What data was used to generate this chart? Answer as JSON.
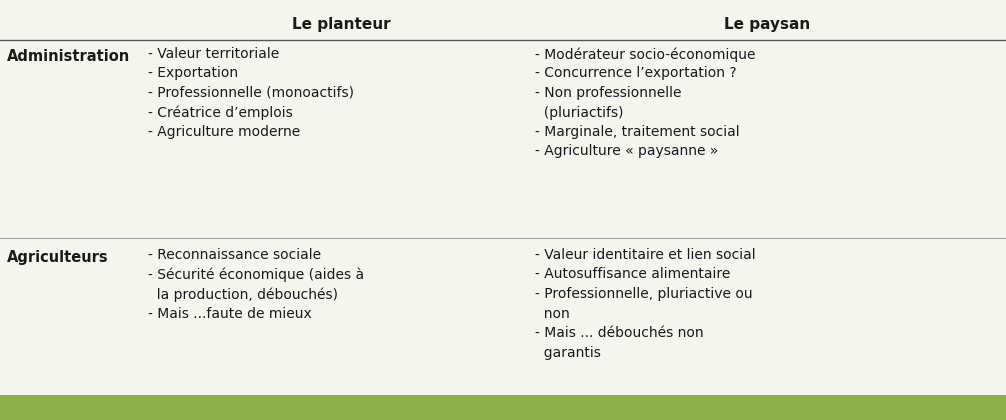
{
  "bg_color": "#f5f5f0",
  "header_col1": "Le planteur",
  "header_col2": "Le paysan",
  "row1_label": "Administration",
  "row2_label": "Agriculteurs",
  "row1_col1_lines": [
    "- Valeur territoriale",
    "- Exportation",
    "- Professionnelle (monoactifs)",
    "- Créatrice d’emplois",
    "- Agriculture moderne"
  ],
  "row1_col2_lines": [
    "- Modérateur socio-économique",
    "- Concurrence l’exportation ?",
    "- Non professionnelle",
    "  (pluriactifs)",
    "- Marginale, traitement social",
    "- Agriculture « paysanne »"
  ],
  "row2_col1_lines": [
    "- Reconnaissance sociale",
    "- Sécurité économique (aides à",
    "  la production, débouchés)",
    "- Mais ...faute de mieux"
  ],
  "row2_col2_lines": [
    "- Valeur identitaire et lien social",
    "- Autosuffisance alimentaire",
    "- Professionnelle, pluriactive ou",
    "  non",
    "- Mais ... débouchés non",
    "  garantis"
  ],
  "bottom_bar_color": "#8db04a",
  "text_color": "#1a1a1a",
  "header_fontsize": 11,
  "body_fontsize": 10,
  "label_fontsize": 10.5
}
